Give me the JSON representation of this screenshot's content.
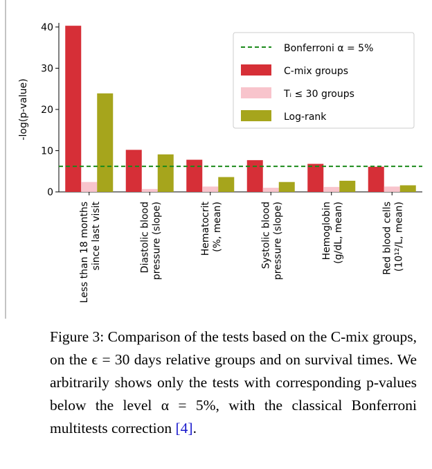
{
  "chart_data": {
    "type": "bar",
    "ylabel": "-log(p-value)",
    "categories": [
      [
        "Less than 18 months",
        "since last visit"
      ],
      [
        "Diastolic blood",
        "pressure (slope)"
      ],
      [
        "Hematocrit",
        "(%, mean)"
      ],
      [
        "Systolic blood",
        "pressure (slope)"
      ],
      [
        "Hemoglobin",
        "(g/dL, mean)"
      ],
      [
        "Red blood cells",
        "(10¹²/L, mean)"
      ]
    ],
    "series": [
      {
        "name": "C-mix groups",
        "color": "#d62f37",
        "values": [
          40.3,
          10.2,
          7.8,
          7.7,
          6.8,
          6.1
        ]
      },
      {
        "name": "Tᵢ ≤ 30 groups",
        "color": "#f8c4cc",
        "values": [
          2.4,
          0.7,
          1.3,
          1.0,
          1.2,
          1.3
        ]
      },
      {
        "name": "Log-rank",
        "color": "#a6a51c",
        "values": [
          23.9,
          9.1,
          3.6,
          2.4,
          2.7,
          1.6
        ]
      }
    ],
    "reference_line": {
      "name": "Bonferroni α = 5%",
      "value": 6.2,
      "color": "#1a8a1a"
    },
    "ylim": [
      0,
      41
    ],
    "yticks": [
      0,
      10,
      20,
      30,
      40
    ]
  },
  "caption": {
    "text": "Figure 3: Comparison of the tests based on the C-mix groups, on the ϵ = 30 days relative groups and on survival times. We arbitrarily shows only the tests with corresponding p-values below the level α = 5%, with the classical Bonferroni multitests correction",
    "ref": "[4]",
    "end": "."
  }
}
